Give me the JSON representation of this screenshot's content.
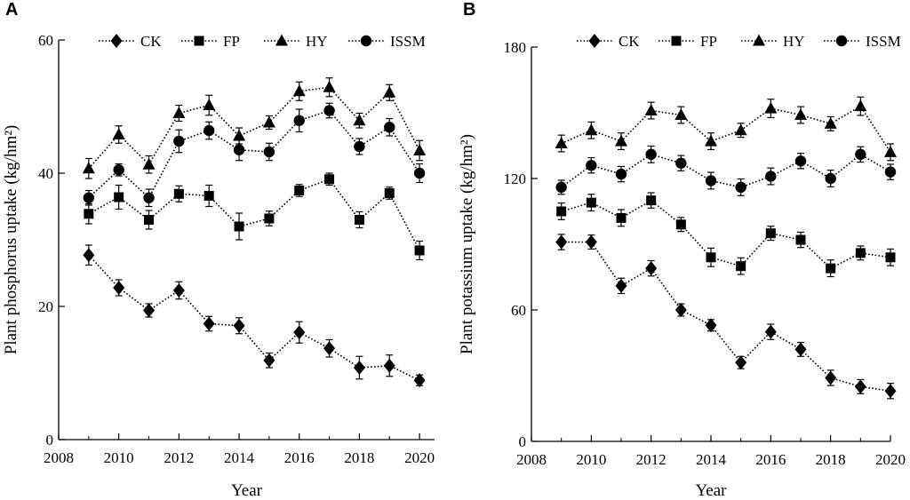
{
  "panels": [
    {
      "letter": "A"
    },
    {
      "letter": "B"
    }
  ],
  "chart_data": [
    {
      "type": "line",
      "panel": "A",
      "title": "",
      "xlabel": "Year",
      "ylabel": "Plant phosphorus uptake (kg/hm²)",
      "xlim": [
        2008,
        2020.5
      ],
      "ylim": [
        0,
        60
      ],
      "xticks": [
        2008,
        2010,
        2012,
        2014,
        2016,
        2018,
        2020
      ],
      "yticks": [
        0,
        20,
        40,
        60
      ],
      "x": [
        2009,
        2010,
        2011,
        2012,
        2013,
        2014,
        2015,
        2016,
        2017,
        2018,
        2019,
        2020
      ],
      "legend_position": "top",
      "series": [
        {
          "name": "CK",
          "marker": "diamond",
          "values": [
            27.7,
            22.8,
            19.4,
            22.4,
            17.4,
            17.1,
            11.9,
            16.1,
            13.7,
            10.8,
            11.1,
            8.9
          ],
          "errors": [
            1.5,
            1.2,
            1.0,
            1.3,
            1.1,
            1.2,
            1.1,
            1.6,
            1.3,
            1.7,
            1.6,
            0.8
          ]
        },
        {
          "name": "FP",
          "marker": "square",
          "values": [
            33.9,
            36.4,
            33.0,
            36.9,
            36.6,
            32.0,
            33.2,
            37.4,
            39.1,
            33.0,
            37.0,
            28.4
          ],
          "errors": [
            1.5,
            1.8,
            1.4,
            1.2,
            1.6,
            2.0,
            1.1,
            0.9,
            0.9,
            1.2,
            0.9,
            1.4
          ]
        },
        {
          "name": "HY",
          "marker": "triangle",
          "values": [
            40.7,
            45.8,
            41.3,
            49.0,
            50.2,
            45.6,
            47.6,
            52.3,
            52.9,
            47.9,
            52.1,
            43.4
          ],
          "errors": [
            1.5,
            1.3,
            1.3,
            1.2,
            1.5,
            1.2,
            1.0,
            1.4,
            1.4,
            1.1,
            1.2,
            1.5
          ]
        },
        {
          "name": "ISSM",
          "marker": "circle",
          "values": [
            36.3,
            40.5,
            36.3,
            44.8,
            46.4,
            43.5,
            43.2,
            47.9,
            49.4,
            44.0,
            46.9,
            40.0
          ],
          "errors": [
            1.1,
            0.9,
            1.3,
            1.7,
            1.3,
            1.6,
            1.3,
            1.7,
            1.1,
            1.2,
            1.3,
            1.4
          ]
        }
      ]
    },
    {
      "type": "line",
      "panel": "B",
      "title": "",
      "xlabel": "Year",
      "ylabel": "Plant potassium uptake (kg/hm²)",
      "xlim": [
        2008,
        2020
      ],
      "ylim": [
        0,
        180
      ],
      "xticks": [
        2008,
        2010,
        2012,
        2014,
        2016,
        2018,
        2020
      ],
      "yticks": [
        0,
        60,
        120,
        180
      ],
      "x": [
        2009,
        2010,
        2011,
        2012,
        2013,
        2014,
        2015,
        2016,
        2017,
        2018,
        2019,
        2020
      ],
      "legend_position": "top",
      "series": [
        {
          "name": "CK",
          "marker": "diamond",
          "values": [
            91,
            91,
            71,
            79,
            60,
            53,
            36,
            50,
            42,
            29,
            25,
            23
          ],
          "errors": [
            3.5,
            3.2,
            3.5,
            3.5,
            2.8,
            2.6,
            2.8,
            3.5,
            3.2,
            3.5,
            3.2,
            3.5
          ]
        },
        {
          "name": "FP",
          "marker": "square",
          "values": [
            105,
            109,
            102,
            110,
            99,
            84,
            80,
            95,
            92,
            79,
            86,
            84
          ],
          "errors": [
            3.8,
            3.8,
            3.8,
            3.5,
            3.2,
            4.2,
            3.8,
            3.2,
            3.5,
            3.8,
            3.2,
            3.8
          ]
        },
        {
          "name": "HY",
          "marker": "triangle",
          "values": [
            136,
            142,
            137,
            151,
            149,
            137,
            142,
            152,
            149,
            145,
            153,
            132
          ],
          "errors": [
            3.8,
            3.8,
            3.8,
            3.8,
            3.8,
            3.8,
            3.2,
            4.2,
            3.8,
            3.2,
            4.2,
            3.8
          ]
        },
        {
          "name": "ISSM",
          "marker": "circle",
          "values": [
            116,
            126,
            122,
            131,
            127,
            119,
            116,
            121,
            128,
            120,
            131,
            123
          ],
          "errors": [
            3.2,
            3.5,
            3.5,
            3.8,
            3.5,
            3.8,
            3.8,
            3.8,
            3.5,
            3.8,
            3.5,
            3.5
          ]
        }
      ]
    }
  ]
}
